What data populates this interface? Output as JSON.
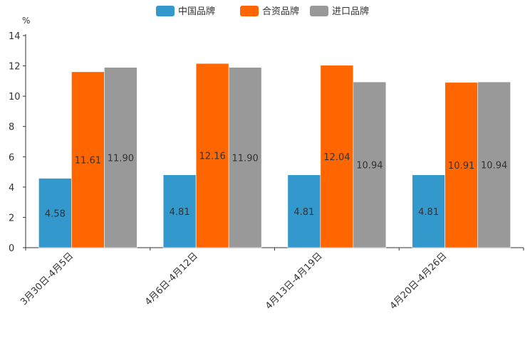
{
  "chart_data": {
    "type": "bar",
    "title": "",
    "xlabel": "",
    "ylabel": "%",
    "ylim": [
      0,
      14
    ],
    "yticks": [
      0,
      2,
      4,
      6,
      8,
      10,
      12,
      14
    ],
    "grid": false,
    "legend_position": "top-center",
    "categories": [
      "3月30日-4月5日",
      "4月6日-4月12日",
      "4月13日-4月19日",
      "4月20日-4月26日"
    ],
    "series": [
      {
        "name": "中国品牌",
        "color": "#3399cc",
        "values": [
          4.58,
          4.81,
          4.81,
          4.81
        ],
        "labels": [
          "4.58",
          "4.81",
          "4.81",
          "4.81"
        ]
      },
      {
        "name": "合资品牌",
        "color": "#ff6600",
        "values": [
          11.61,
          12.16,
          12.04,
          10.91
        ],
        "labels": [
          "11.61",
          "12.16",
          "12.04",
          "10.91"
        ]
      },
      {
        "name": "进口品牌",
        "color": "#999999",
        "values": [
          11.9,
          11.9,
          10.94,
          10.94
        ],
        "labels": [
          "11.90",
          "11.90",
          "10.94",
          "10.94"
        ]
      }
    ]
  }
}
